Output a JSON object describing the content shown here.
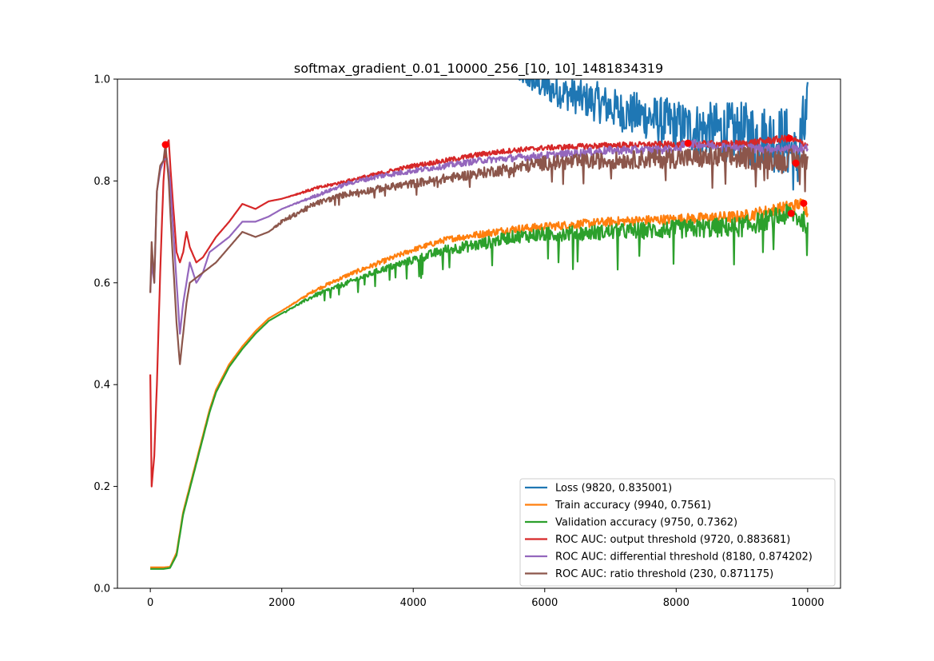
{
  "chart_data": {
    "type": "line",
    "title": "softmax_gradient_0.01_10000_256_[10, 10]_1481834319",
    "xlabel": "",
    "ylabel": "",
    "xlim": [
      -500,
      10500
    ],
    "ylim": [
      0.0,
      1.0
    ],
    "x_ticks": [
      0,
      2000,
      4000,
      6000,
      8000,
      10000
    ],
    "x_tick_labels": [
      "0",
      "2000",
      "4000",
      "6000",
      "8000",
      "10000"
    ],
    "y_ticks": [
      0.0,
      0.2,
      0.4,
      0.6,
      0.8,
      1.0
    ],
    "y_tick_labels": [
      "0.0",
      "0.2",
      "0.4",
      "0.6",
      "0.8",
      "1.0"
    ],
    "grid": false,
    "legend_position": "lower-right",
    "series": [
      {
        "name": "Loss (9820, 0.835001)",
        "color": "#1f77b4",
        "x": [
          5600,
          5800,
          6000,
          6200,
          6400,
          6600,
          6800,
          7000,
          7200,
          7400,
          7600,
          7800,
          8000,
          8200,
          8400,
          8600,
          8800,
          9000,
          9200,
          9400,
          9600,
          9700,
          9820,
          9900,
          10000
        ],
        "y": [
          1.0,
          0.995,
          0.985,
          0.975,
          0.97,
          0.96,
          0.955,
          0.945,
          0.935,
          0.93,
          0.925,
          0.915,
          0.91,
          0.905,
          0.9,
          0.9,
          0.895,
          0.895,
          0.89,
          0.885,
          0.88,
          0.875,
          0.835,
          0.88,
          0.92
        ],
        "spread": [
          0.0,
          0.02,
          0.03,
          0.03,
          0.035,
          0.035,
          0.04,
          0.04,
          0.04,
          0.045,
          0.045,
          0.05,
          0.05,
          0.05,
          0.055,
          0.055,
          0.06,
          0.06,
          0.065,
          0.065,
          0.07,
          0.07,
          0.07,
          0.08,
          0.08
        ]
      },
      {
        "name": "Train accuracy (9940, 0.7561)",
        "color": "#ff7f0e",
        "x": [
          0,
          100,
          200,
          300,
          400,
          500,
          600,
          700,
          800,
          900,
          1000,
          1200,
          1400,
          1600,
          1800,
          2000,
          2500,
          3000,
          3500,
          4000,
          4500,
          5000,
          5500,
          6000,
          7000,
          8000,
          9000,
          9940,
          10000
        ],
        "y": [
          0.041,
          0.041,
          0.041,
          0.042,
          0.07,
          0.15,
          0.2,
          0.25,
          0.3,
          0.35,
          0.39,
          0.44,
          0.475,
          0.505,
          0.53,
          0.545,
          0.585,
          0.615,
          0.64,
          0.665,
          0.685,
          0.695,
          0.705,
          0.71,
          0.72,
          0.725,
          0.73,
          0.756,
          0.735
        ],
        "spread": [
          0,
          0,
          0,
          0,
          0,
          0,
          0,
          0,
          0,
          0,
          0,
          0,
          0,
          0,
          0,
          0,
          0.003,
          0.004,
          0.005,
          0.005,
          0.006,
          0.007,
          0.008,
          0.008,
          0.009,
          0.01,
          0.012,
          0.012,
          0.012
        ]
      },
      {
        "name": "Validation accuracy (9750, 0.7362)",
        "color": "#2ca02c",
        "x": [
          0,
          100,
          200,
          300,
          400,
          500,
          600,
          700,
          800,
          900,
          1000,
          1200,
          1400,
          1600,
          1800,
          2000,
          2500,
          3000,
          3500,
          4000,
          4500,
          5000,
          5500,
          6000,
          7000,
          8000,
          9000,
          9750,
          10000
        ],
        "y": [
          0.038,
          0.038,
          0.038,
          0.04,
          0.065,
          0.145,
          0.195,
          0.245,
          0.295,
          0.345,
          0.385,
          0.435,
          0.47,
          0.5,
          0.525,
          0.54,
          0.575,
          0.6,
          0.625,
          0.645,
          0.665,
          0.675,
          0.69,
          0.695,
          0.7,
          0.705,
          0.71,
          0.736,
          0.715
        ],
        "spread": [
          0,
          0,
          0,
          0,
          0,
          0,
          0,
          0,
          0,
          0,
          0,
          0,
          0,
          0,
          0,
          0,
          0.004,
          0.005,
          0.006,
          0.008,
          0.01,
          0.012,
          0.012,
          0.014,
          0.015,
          0.018,
          0.02,
          0.02,
          0.02
        ]
      },
      {
        "name": "ROC AUC: output threshold (9720, 0.883681)",
        "color": "#d62728",
        "x": [
          0,
          20,
          60,
          100,
          150,
          200,
          240,
          280,
          320,
          400,
          450,
          500,
          550,
          600,
          700,
          800,
          900,
          1000,
          1200,
          1400,
          1600,
          1800,
          2000,
          2500,
          3000,
          3500,
          4000,
          4500,
          5000,
          5500,
          6000,
          7000,
          8000,
          9000,
          9720,
          10000
        ],
        "y": [
          0.42,
          0.2,
          0.26,
          0.4,
          0.62,
          0.8,
          0.87,
          0.88,
          0.8,
          0.66,
          0.64,
          0.66,
          0.7,
          0.67,
          0.64,
          0.65,
          0.67,
          0.69,
          0.72,
          0.755,
          0.745,
          0.76,
          0.765,
          0.785,
          0.8,
          0.815,
          0.83,
          0.84,
          0.852,
          0.86,
          0.865,
          0.87,
          0.872,
          0.873,
          0.884,
          0.87
        ],
        "spread": [
          0,
          0,
          0,
          0,
          0,
          0,
          0,
          0,
          0,
          0,
          0,
          0,
          0,
          0,
          0,
          0,
          0,
          0,
          0,
          0,
          0,
          0,
          0,
          0.003,
          0.003,
          0.004,
          0.004,
          0.005,
          0.005,
          0.005,
          0.005,
          0.006,
          0.006,
          0.007,
          0.007,
          0.007
        ]
      },
      {
        "name": "ROC AUC: differential threshold (8180, 0.874202)",
        "color": "#9467bd",
        "x": [
          0,
          20,
          60,
          100,
          150,
          200,
          250,
          300,
          400,
          450,
          500,
          550,
          600,
          700,
          800,
          900,
          1000,
          1200,
          1400,
          1600,
          1800,
          2000,
          2500,
          3000,
          3500,
          4000,
          4500,
          5000,
          5500,
          6000,
          7000,
          8000,
          8180,
          9000,
          10000
        ],
        "y": [
          0.58,
          0.64,
          0.6,
          0.78,
          0.82,
          0.84,
          0.845,
          0.8,
          0.6,
          0.5,
          0.56,
          0.6,
          0.64,
          0.6,
          0.62,
          0.66,
          0.67,
          0.69,
          0.72,
          0.72,
          0.73,
          0.745,
          0.77,
          0.795,
          0.81,
          0.82,
          0.83,
          0.84,
          0.845,
          0.85,
          0.86,
          0.862,
          0.874,
          0.864,
          0.863
        ],
        "spread": [
          0,
          0,
          0,
          0,
          0,
          0,
          0,
          0,
          0,
          0,
          0,
          0,
          0,
          0,
          0,
          0,
          0,
          0,
          0,
          0,
          0,
          0,
          0.003,
          0.004,
          0.005,
          0.005,
          0.006,
          0.006,
          0.007,
          0.007,
          0.008,
          0.008,
          0.008,
          0.009,
          0.009
        ]
      },
      {
        "name": "ROC AUC: ratio threshold (230, 0.871175)",
        "color": "#8c564b",
        "x": [
          0,
          20,
          60,
          100,
          150,
          200,
          230,
          280,
          320,
          400,
          450,
          500,
          550,
          600,
          700,
          800,
          900,
          1000,
          1200,
          1400,
          1600,
          1800,
          2000,
          2500,
          3000,
          3500,
          4000,
          4500,
          5000,
          5500,
          6000,
          7000,
          8000,
          9000,
          10000
        ],
        "y": [
          0.58,
          0.68,
          0.6,
          0.78,
          0.83,
          0.84,
          0.871,
          0.8,
          0.7,
          0.52,
          0.44,
          0.5,
          0.56,
          0.6,
          0.61,
          0.62,
          0.63,
          0.64,
          0.67,
          0.7,
          0.69,
          0.7,
          0.72,
          0.755,
          0.775,
          0.785,
          0.795,
          0.805,
          0.815,
          0.825,
          0.835,
          0.84,
          0.845,
          0.845,
          0.84
        ],
        "spread": [
          0,
          0,
          0,
          0,
          0,
          0,
          0,
          0,
          0,
          0,
          0,
          0,
          0,
          0,
          0,
          0,
          0,
          0,
          0,
          0,
          0,
          0,
          0.004,
          0.005,
          0.006,
          0.007,
          0.008,
          0.009,
          0.01,
          0.012,
          0.014,
          0.016,
          0.02,
          0.022,
          0.022
        ]
      }
    ],
    "markers": {
      "color": "#ff0000",
      "points": [
        {
          "x": 9820,
          "y": 0.835001
        },
        {
          "x": 9940,
          "y": 0.7561
        },
        {
          "x": 9750,
          "y": 0.7362
        },
        {
          "x": 9720,
          "y": 0.883681
        },
        {
          "x": 8180,
          "y": 0.874202
        },
        {
          "x": 230,
          "y": 0.871175
        }
      ]
    }
  }
}
